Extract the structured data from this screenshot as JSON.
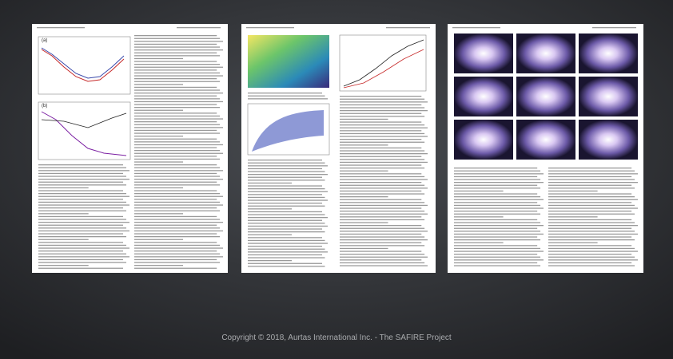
{
  "footer": {
    "copyright": "Copyright © 2018, Aurtas International Inc. - The SAFIRE Project"
  },
  "pages": [
    {
      "figure_labels": [
        "(a)",
        "(b)"
      ]
    }
  ]
}
